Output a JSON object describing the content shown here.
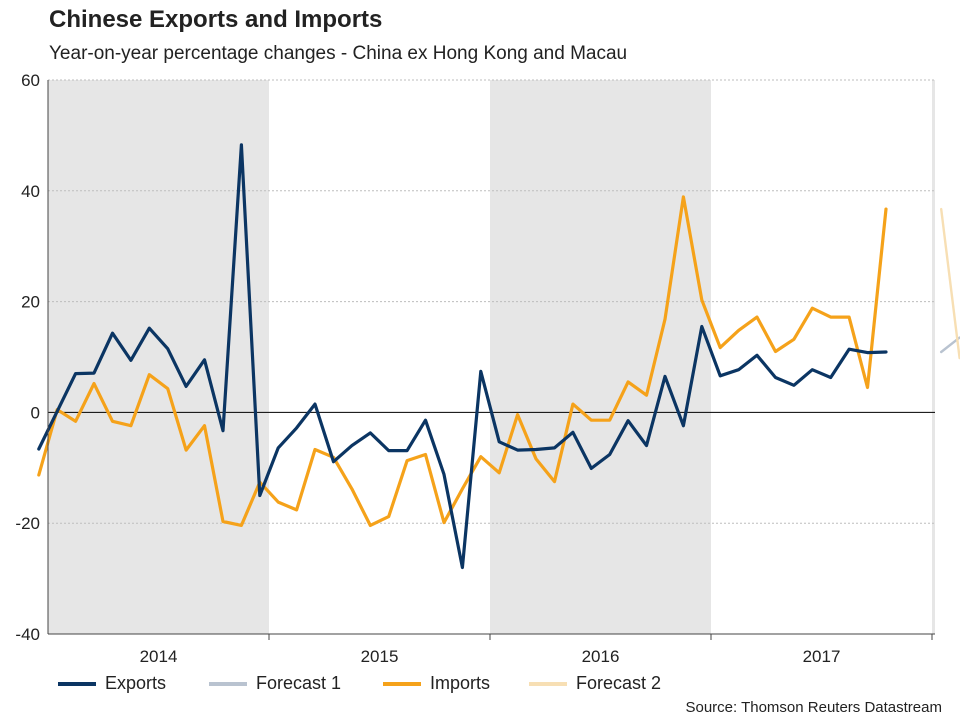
{
  "header": {
    "title": "Chinese Exports and Imports",
    "subtitle": "Year-on-year percentage changes - China ex Hong Kong and Macau",
    "source": "Source: Thomson Reuters Datastream"
  },
  "colors": {
    "exports": "#0b3563",
    "imports": "#f5a21a",
    "forecast1": "#b9c3d0",
    "forecast2": "#f7dfb4",
    "band": "#e6e6e6"
  },
  "legend": [
    {
      "label": "Exports",
      "color": "#0b3563"
    },
    {
      "label": "Forecast 1",
      "color": "#b9c3d0"
    },
    {
      "label": "Imports",
      "color": "#f5a21a"
    },
    {
      "label": "Forecast 2",
      "color": "#f7dfb4"
    }
  ],
  "chart_data": {
    "type": "line",
    "title": "Chinese Exports and Imports",
    "subtitle": "Year-on-year percentage changes - China ex Hong Kong and Macau",
    "ylim": [
      -40,
      60
    ],
    "yticks": [
      -40,
      -20,
      0,
      20,
      40,
      60
    ],
    "grid": true,
    "x_start": "2013-12",
    "x_end": "2018-01",
    "year_labels": [
      "2014",
      "2015",
      "2016",
      "2017"
    ],
    "shaded_years": [
      "2014",
      "2016",
      "2018"
    ],
    "series": [
      {
        "name": "Exports",
        "start": "2013-12",
        "values": [
          -6.6,
          0.2,
          7.0,
          7.1,
          14.3,
          9.4,
          15.2,
          11.5,
          4.7,
          9.5,
          -3.3,
          48.3,
          -15.0,
          -6.4,
          -2.8,
          1.5,
          -8.9,
          -6.0,
          -3.7,
          -6.9,
          -6.9,
          -1.4,
          -11.2,
          -28.0,
          7.4,
          -5.3,
          -6.8,
          -6.7,
          -6.4,
          -3.6,
          -10.1,
          -7.6,
          -1.5,
          -6.0,
          6.5,
          -2.4,
          15.5,
          6.6,
          7.7,
          10.3,
          6.3,
          4.9,
          7.7,
          6.3,
          11.4,
          10.8,
          10.9
        ]
      },
      {
        "name": "Imports",
        "start": "2013-12",
        "values": [
          -11.3,
          0.5,
          -1.6,
          5.2,
          -1.6,
          -2.4,
          6.8,
          4.3,
          -6.8,
          -2.4,
          -19.7,
          -20.4,
          -12.6,
          -16.2,
          -17.6,
          -6.7,
          -8.1,
          -13.8,
          -20.4,
          -18.8,
          -8.7,
          -7.6,
          -19.9,
          -13.8,
          -8.0,
          -10.9,
          -0.4,
          -8.4,
          -12.5,
          1.5,
          -1.4,
          -1.4,
          5.5,
          3.1,
          16.8,
          38.9,
          20.3,
          11.7,
          14.8,
          17.2,
          11.0,
          13.2,
          18.8,
          17.2,
          17.2,
          4.5,
          36.7
        ]
      },
      {
        "name": "Forecast 1",
        "start": "2018-01",
        "values": [
          10.9,
          13.5
        ]
      },
      {
        "name": "Forecast 2",
        "start": "2018-01",
        "values": [
          36.7,
          9.8
        ]
      }
    ]
  }
}
